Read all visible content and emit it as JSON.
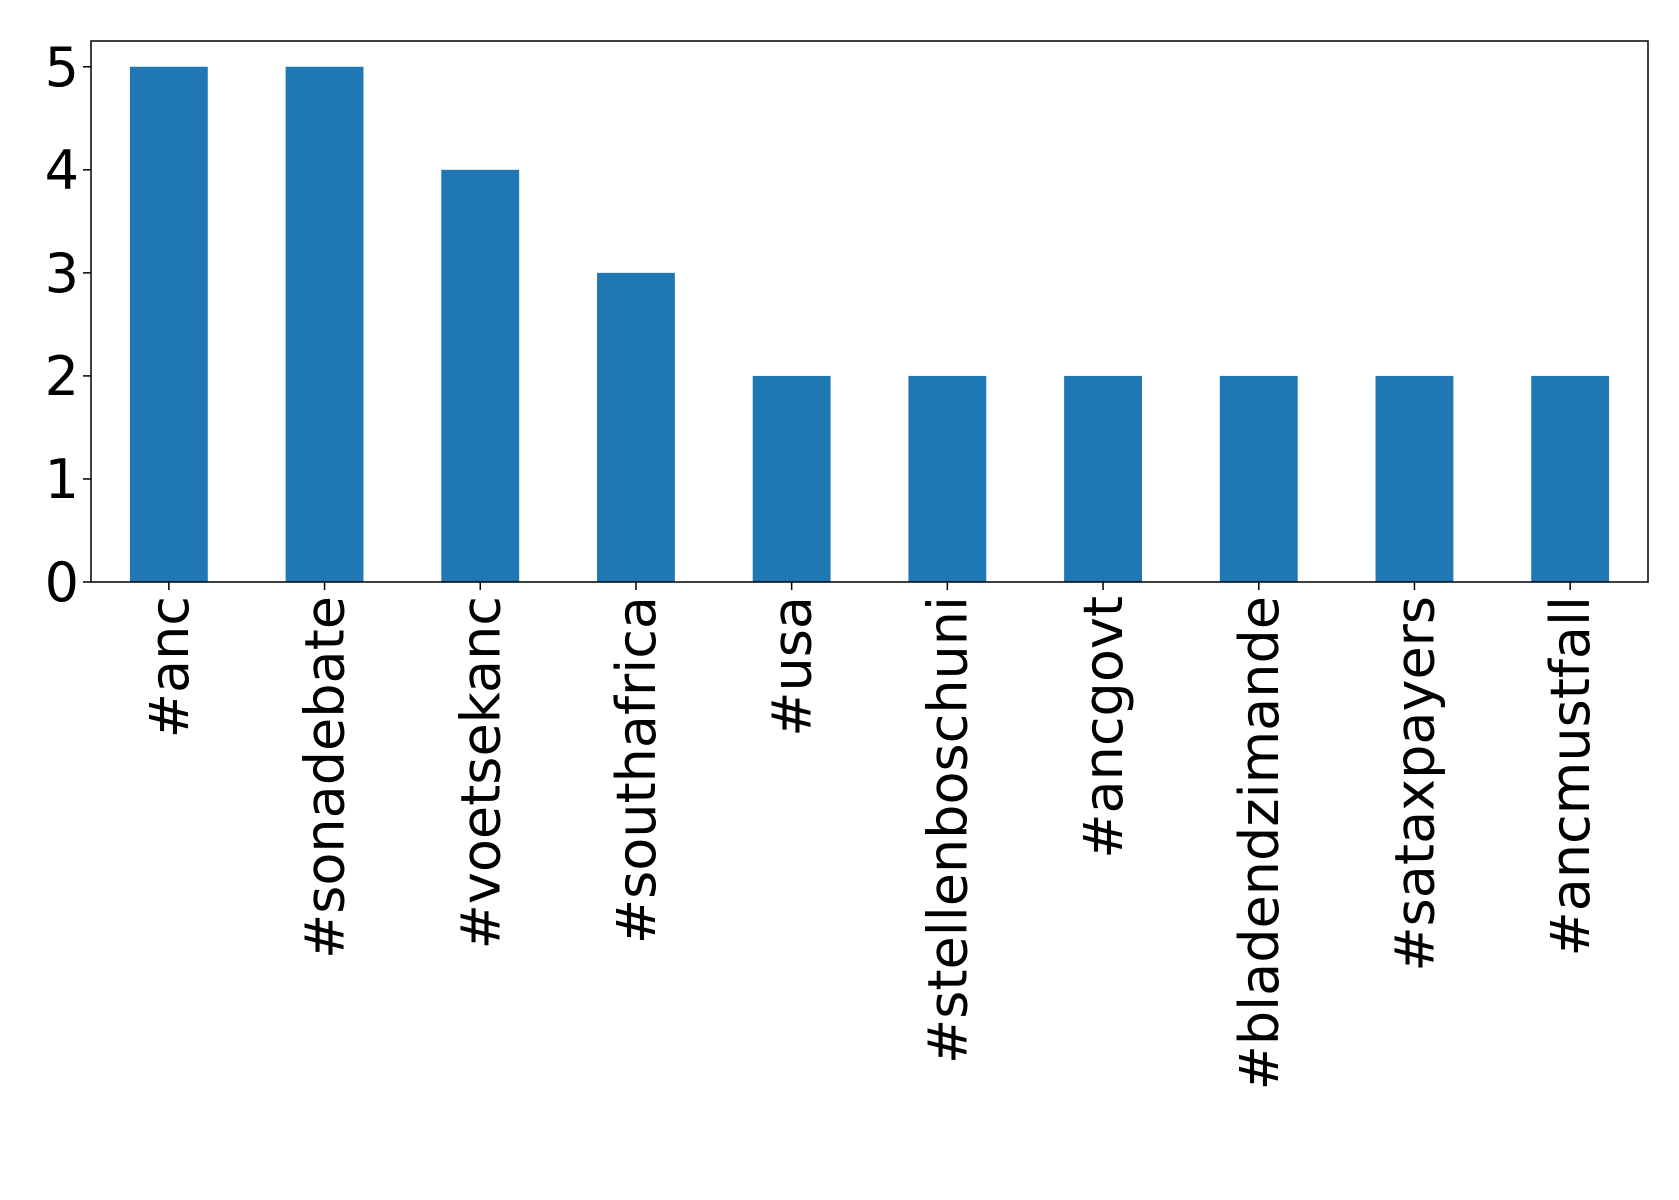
{
  "chart_data": {
    "type": "bar",
    "categories": [
      "#anc",
      "#sonadebate",
      "#voetsekanc",
      "#southafrica",
      "#usa",
      "#stellenboschuni",
      "#ancgovt",
      "#bladendzimande",
      "#sataxpayers",
      "#ancmustfall"
    ],
    "values": [
      5,
      5,
      4,
      3,
      2,
      2,
      2,
      2,
      2,
      2
    ],
    "color": "#1f77b4",
    "ylim": [
      0,
      5.25
    ],
    "yticks": [
      0,
      1,
      2,
      3,
      4,
      5
    ],
    "grid": false
  }
}
